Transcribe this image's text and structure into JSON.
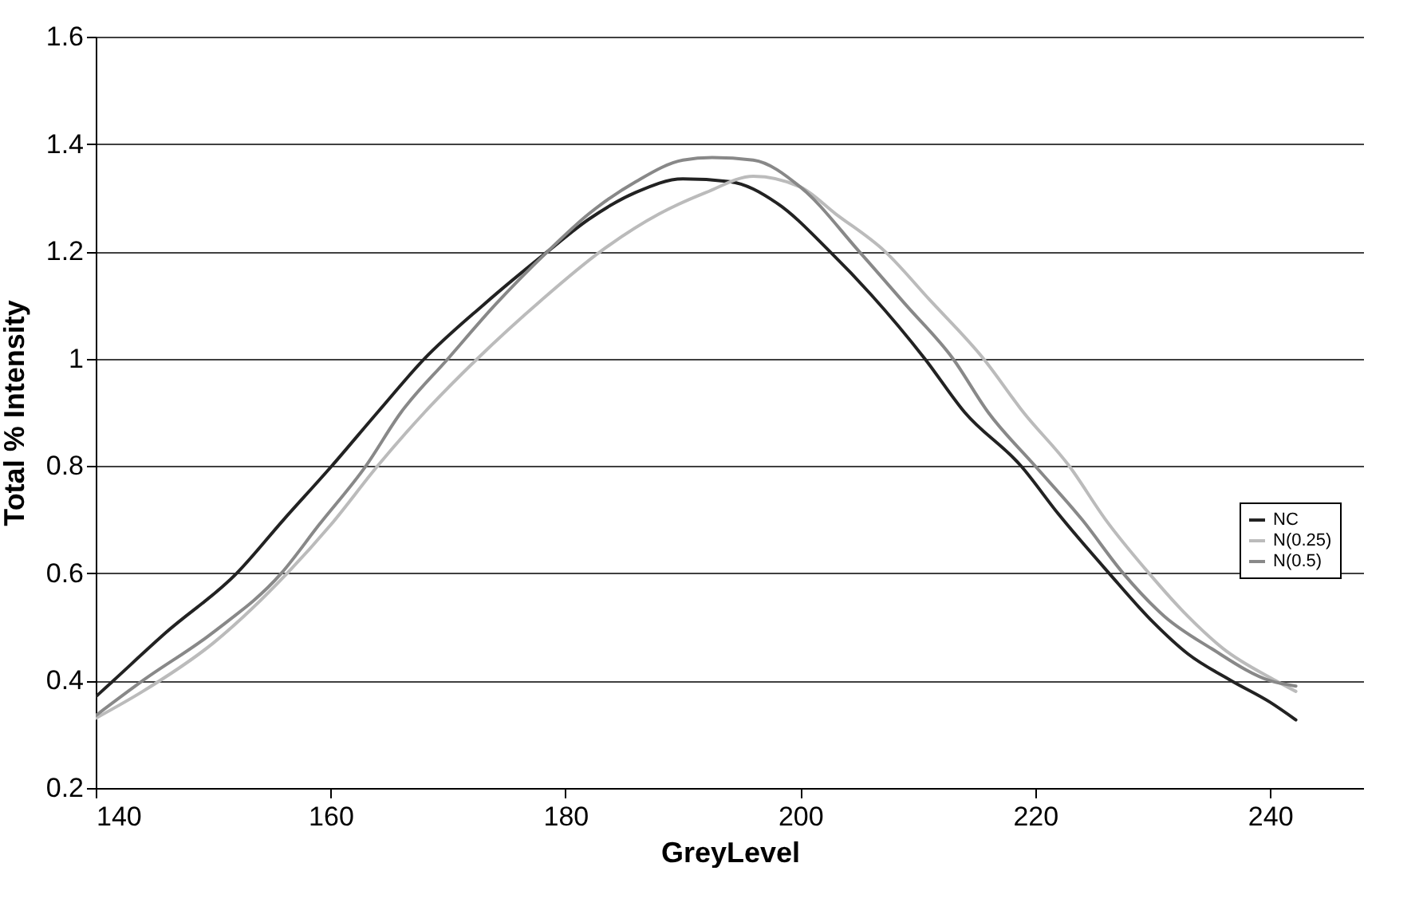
{
  "chart_data": {
    "type": "line",
    "xlabel": "GreyLevel",
    "ylabel": "Total % Intensity",
    "xlim": [
      140,
      248
    ],
    "xticks": [
      140,
      160,
      180,
      200,
      220,
      240
    ],
    "ylim": [
      0.2,
      1.6
    ],
    "yticks": [
      0.2,
      0.4,
      0.6,
      0.8,
      1,
      1.2,
      1.4,
      1.6
    ],
    "grid": "y",
    "legend": "right",
    "line_style": "solid",
    "marker": "none",
    "series": [
      {
        "name": "NC",
        "color": "#222222",
        "x": [
          140,
          141.5,
          146,
          152,
          156,
          160.1,
          164,
          168,
          173,
          178.5,
          182,
          186,
          190,
          194,
          198,
          202.5,
          206,
          210.6,
          214,
          218.8,
          222,
          226.3,
          230,
          233,
          236.7,
          240,
          242.2
        ],
        "values": [
          0.37,
          0.4,
          0.49,
          0.6,
          0.7,
          0.8,
          0.9,
          1.0,
          1.1,
          1.2,
          1.26,
          1.31,
          1.335,
          1.33,
          1.29,
          1.2,
          1.12,
          1.0,
          0.9,
          0.8,
          0.71,
          0.6,
          0.51,
          0.45,
          0.4,
          0.36,
          0.327
        ]
      },
      {
        "name": "N(0.25)",
        "color": "#bbbbbb",
        "x": [
          140,
          144,
          150,
          156.3,
          160,
          164,
          168,
          172.5,
          178,
          183,
          188,
          192,
          196,
          200,
          203,
          207.2,
          211,
          215.6,
          219,
          222.9,
          226,
          229.7,
          233,
          236,
          240.5,
          242.2
        ],
        "values": [
          0.33,
          0.38,
          0.47,
          0.6,
          0.69,
          0.8,
          0.9,
          1.0,
          1.11,
          1.2,
          1.27,
          1.31,
          1.34,
          1.32,
          1.27,
          1.2,
          1.11,
          1.0,
          0.9,
          0.8,
          0.7,
          0.6,
          0.52,
          0.46,
          0.4,
          0.38
        ]
      },
      {
        "name": "N(0.5)",
        "color": "#888888",
        "x": [
          140,
          144,
          150,
          155.8,
          159,
          163,
          166,
          170,
          174,
          178.5,
          182,
          186,
          190,
          192.5,
          196,
          200,
          205,
          209,
          213,
          216,
          220,
          224,
          227.5,
          231,
          235,
          240,
          242.2
        ],
        "values": [
          0.335,
          0.4,
          0.49,
          0.6,
          0.69,
          0.8,
          0.9,
          1.0,
          1.1,
          1.2,
          1.27,
          1.33,
          1.37,
          1.375,
          1.37,
          1.32,
          1.2,
          1.1,
          1.0,
          0.9,
          0.8,
          0.7,
          0.6,
          0.52,
          0.46,
          0.4,
          0.39
        ]
      }
    ]
  }
}
